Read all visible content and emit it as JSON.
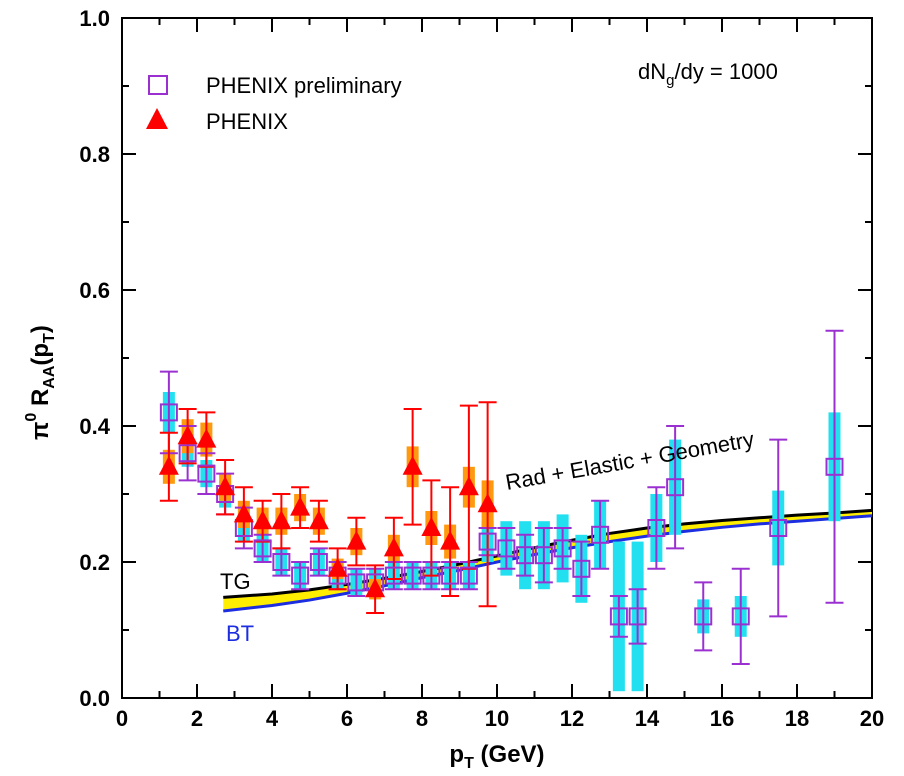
{
  "chart_data": {
    "type": "scatter",
    "title": "",
    "xlabel": {
      "main": "p",
      "sub": "T",
      "rest": " (GeV)"
    },
    "ylabel": {
      "sup": "0",
      "main": "π",
      "r": " R",
      "sub": "AA",
      "rest": "(p",
      "sub2": "T",
      "close": ")"
    },
    "xlim": [
      0,
      20
    ],
    "ylim": [
      0,
      1.0
    ],
    "xticks": [
      "0",
      "2",
      "4",
      "6",
      "8",
      "10",
      "12",
      "14",
      "16",
      "18",
      "20"
    ],
    "yticks": [
      "0.0",
      "0.2",
      "0.4",
      "0.6",
      "0.8",
      "1.0"
    ],
    "legend": {
      "position": "top-left",
      "entries": [
        "PHENIX preliminary",
        "PHENIX"
      ]
    },
    "annotation": {
      "pre": "dN",
      "sub": "g",
      "post": "/dy = 1000"
    },
    "curve_label": "Rad + Elastic + Geometry",
    "band_labels": {
      "top": "TG",
      "bottom": "BT"
    },
    "colors": {
      "preliminary": "#9b30d0",
      "phenix": "#ff0000",
      "sys_preliminary": "#22e0f0",
      "sys_phenix": "#ff9a10",
      "band_fill": "#ffee00",
      "tg_line": "#000000",
      "bt_line": "#1c2ee0"
    },
    "series": [
      {
        "name": "PHENIX preliminary",
        "marker": "open-square",
        "x": [
          1.25,
          1.75,
          2.25,
          2.75,
          3.25,
          3.75,
          4.25,
          4.75,
          5.25,
          5.75,
          6.25,
          6.75,
          7.25,
          7.75,
          8.25,
          8.75,
          9.25,
          9.75,
          10.25,
          10.75,
          11.25,
          11.75,
          12.25,
          12.75,
          13.25,
          13.75,
          14.25,
          14.75,
          15.5,
          16.5,
          17.5,
          19.0
        ],
        "y": [
          0.42,
          0.36,
          0.33,
          0.3,
          0.25,
          0.22,
          0.2,
          0.18,
          0.2,
          0.18,
          0.17,
          0.17,
          0.18,
          0.18,
          0.18,
          0.18,
          0.18,
          0.23,
          0.22,
          0.21,
          0.21,
          0.22,
          0.19,
          0.24,
          0.12,
          0.12,
          0.25,
          0.31,
          0.12,
          0.12,
          0.25,
          0.34
        ],
        "err": [
          0.06,
          0.04,
          0.03,
          0.03,
          0.03,
          0.02,
          0.02,
          0.02,
          0.02,
          0.02,
          0.02,
          0.02,
          0.02,
          0.02,
          0.02,
          0.02,
          0.02,
          0.02,
          0.03,
          0.03,
          0.04,
          0.03,
          0.04,
          0.05,
          0.03,
          0.04,
          0.06,
          0.09,
          0.05,
          0.07,
          0.13,
          0.2
        ],
        "sys": [
          0.03,
          0.02,
          0.02,
          0.02,
          0.02,
          0.02,
          0.02,
          0.02,
          0.02,
          0.02,
          0.02,
          0.02,
          0.02,
          0.02,
          0.02,
          0.02,
          0.02,
          0.03,
          0.04,
          0.05,
          0.05,
          0.05,
          0.05,
          0.05,
          0.11,
          0.11,
          0.05,
          0.07,
          0.025,
          0.03,
          0.055,
          0.08
        ]
      },
      {
        "name": "PHENIX",
        "marker": "filled-triangle",
        "x": [
          1.25,
          1.75,
          2.25,
          2.75,
          3.25,
          3.75,
          4.25,
          4.75,
          5.25,
          5.75,
          6.25,
          6.75,
          7.25,
          7.75,
          8.25,
          8.75,
          9.25,
          9.75
        ],
        "y": [
          0.34,
          0.385,
          0.38,
          0.31,
          0.27,
          0.26,
          0.26,
          0.28,
          0.26,
          0.19,
          0.23,
          0.16,
          0.22,
          0.34,
          0.25,
          0.23,
          0.31,
          0.285
        ],
        "err": [
          0.05,
          0.04,
          0.04,
          0.04,
          0.04,
          0.03,
          0.04,
          0.03,
          0.03,
          0.03,
          0.035,
          0.035,
          0.045,
          0.085,
          0.07,
          0.08,
          0.12,
          0.15
        ],
        "sys": [
          0.025,
          0.025,
          0.025,
          0.02,
          0.02,
          0.02,
          0.02,
          0.02,
          0.02,
          0.015,
          0.02,
          0.015,
          0.02,
          0.03,
          0.025,
          0.025,
          0.03,
          0.035
        ]
      }
    ],
    "bands": [
      {
        "name": "TG",
        "x": [
          2.7,
          4,
          5,
          6,
          7,
          8,
          9,
          10,
          11,
          12,
          13,
          14,
          15,
          16,
          17,
          18,
          19,
          20
        ],
        "y": [
          0.148,
          0.153,
          0.159,
          0.167,
          0.176,
          0.186,
          0.197,
          0.209,
          0.221,
          0.232,
          0.242,
          0.25,
          0.256,
          0.261,
          0.265,
          0.269,
          0.272,
          0.276
        ]
      },
      {
        "name": "BT",
        "x": [
          2.7,
          4,
          5,
          6,
          7,
          8,
          9,
          10,
          11,
          12,
          13,
          14,
          15,
          16,
          17,
          18,
          19,
          20
        ],
        "y": [
          0.128,
          0.136,
          0.144,
          0.154,
          0.165,
          0.177,
          0.188,
          0.2,
          0.211,
          0.221,
          0.23,
          0.238,
          0.245,
          0.251,
          0.256,
          0.26,
          0.264,
          0.268
        ]
      }
    ]
  }
}
